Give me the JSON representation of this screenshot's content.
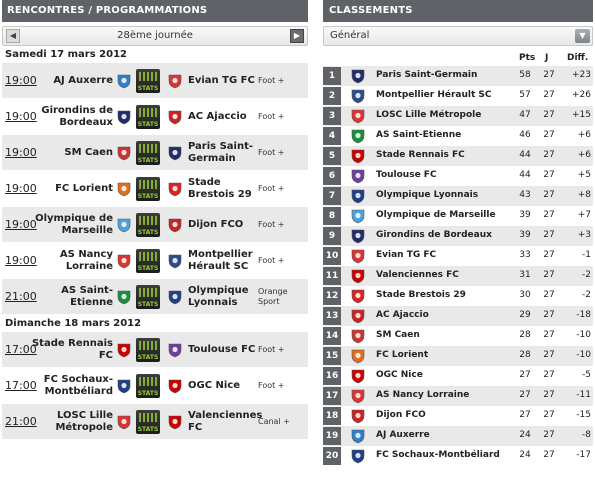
{
  "left": {
    "title": "RENCONTRES / PROGRAMMATIONS",
    "round": "28ème journée",
    "prev_icon": "chevron-left-icon",
    "next_icon": "chevron-right-icon",
    "stats_label": "STATS",
    "days": [
      {
        "date": "Samedi 17 mars 2012",
        "matches": [
          {
            "time": "19:00",
            "home": "AJ Auxerre",
            "away": "Evian TG FC",
            "channel": "Foot +",
            "home_color": "#2f7fd0",
            "away_color": "#d33"
          },
          {
            "time": "19:00",
            "home": "Girondins de Bordeaux",
            "away": "AC Ajaccio",
            "channel": "Foot +",
            "home_color": "#1e2d6b",
            "away_color": "#c22"
          },
          {
            "time": "19:00",
            "home": "SM Caen",
            "away": "Paris Saint-Germain",
            "channel": "Foot +",
            "home_color": "#c33",
            "away_color": "#1e2d6b"
          },
          {
            "time": "19:00",
            "home": "FC Lorient",
            "away": "Stade Brestois 29",
            "channel": "Foot +",
            "home_color": "#e07020",
            "away_color": "#d22"
          },
          {
            "time": "19:00",
            "home": "Olympique de Marseille",
            "away": "Dijon FCO",
            "channel": "Foot +",
            "home_color": "#4aa3df",
            "away_color": "#c22"
          },
          {
            "time": "19:00",
            "home": "AS Nancy Lorraine",
            "away": "Montpellier Hérault SC",
            "channel": "Foot +",
            "home_color": "#d33",
            "away_color": "#2a4e8c"
          },
          {
            "time": "21:00",
            "home": "AS Saint-Etienne",
            "away": "Olympique Lyonnais",
            "channel": "Orange Sport",
            "home_color": "#1a8f3c",
            "away_color": "#1e3f8a"
          }
        ]
      },
      {
        "date": "Dimanche 18 mars 2012",
        "matches": [
          {
            "time": "17:00",
            "home": "Stade Rennais FC",
            "away": "Toulouse FC",
            "channel": "Foot +",
            "home_color": "#c00",
            "away_color": "#6b3fa0"
          },
          {
            "time": "17:00",
            "home": "FC Sochaux-Montbéliard",
            "away": "OGC Nice",
            "channel": "Foot +",
            "home_color": "#1e3f8a",
            "away_color": "#c00"
          },
          {
            "time": "21:00",
            "home": "LOSC Lille Métropole",
            "away": "Valenciennes FC",
            "channel": "Canal +",
            "home_color": "#d33",
            "away_color": "#c00"
          }
        ]
      }
    ]
  },
  "right": {
    "title": "CLASSEMENTS",
    "selector": "Général",
    "dropdown_icon": "chevron-down-icon",
    "columns": {
      "pts": "Pts",
      "j": "J",
      "diff": "Diff."
    },
    "rows": [
      {
        "pos": "1",
        "club": "Paris Saint-Germain",
        "pts": "58",
        "j": "27",
        "diff": "+23",
        "color": "#1e2d6b"
      },
      {
        "pos": "2",
        "club": "Montpellier Hérault SC",
        "pts": "57",
        "j": "27",
        "diff": "+26",
        "color": "#2a4e8c"
      },
      {
        "pos": "3",
        "club": "LOSC Lille Métropole",
        "pts": "47",
        "j": "27",
        "diff": "+15",
        "color": "#d33"
      },
      {
        "pos": "4",
        "club": "AS Saint-Etienne",
        "pts": "46",
        "j": "27",
        "diff": "+6",
        "color": "#1a8f3c"
      },
      {
        "pos": "5",
        "club": "Stade Rennais FC",
        "pts": "44",
        "j": "27",
        "diff": "+6",
        "color": "#c00"
      },
      {
        "pos": "6",
        "club": "Toulouse FC",
        "pts": "44",
        "j": "27",
        "diff": "+5",
        "color": "#6b3fa0"
      },
      {
        "pos": "7",
        "club": "Olympique Lyonnais",
        "pts": "43",
        "j": "27",
        "diff": "+8",
        "color": "#1e3f8a"
      },
      {
        "pos": "8",
        "club": "Olympique de Marseille",
        "pts": "39",
        "j": "27",
        "diff": "+7",
        "color": "#4aa3df"
      },
      {
        "pos": "9",
        "club": "Girondins de Bordeaux",
        "pts": "39",
        "j": "27",
        "diff": "+3",
        "color": "#1e2d6b"
      },
      {
        "pos": "10",
        "club": "Evian TG FC",
        "pts": "33",
        "j": "27",
        "diff": "-1",
        "color": "#d33"
      },
      {
        "pos": "11",
        "club": "Valenciennes FC",
        "pts": "31",
        "j": "27",
        "diff": "-2",
        "color": "#c00"
      },
      {
        "pos": "12",
        "club": "Stade Brestois 29",
        "pts": "30",
        "j": "27",
        "diff": "-2",
        "color": "#d22"
      },
      {
        "pos": "13",
        "club": "AC Ajaccio",
        "pts": "29",
        "j": "27",
        "diff": "-18",
        "color": "#c22"
      },
      {
        "pos": "14",
        "club": "SM Caen",
        "pts": "28",
        "j": "27",
        "diff": "-10",
        "color": "#c33"
      },
      {
        "pos": "15",
        "club": "FC Lorient",
        "pts": "28",
        "j": "27",
        "diff": "-10",
        "color": "#e07020"
      },
      {
        "pos": "16",
        "club": "OGC Nice",
        "pts": "27",
        "j": "27",
        "diff": "-5",
        "color": "#c00"
      },
      {
        "pos": "17",
        "club": "AS Nancy Lorraine",
        "pts": "27",
        "j": "27",
        "diff": "-11",
        "color": "#d33"
      },
      {
        "pos": "18",
        "club": "Dijon FCO",
        "pts": "27",
        "j": "27",
        "diff": "-15",
        "color": "#c22"
      },
      {
        "pos": "19",
        "club": "AJ Auxerre",
        "pts": "24",
        "j": "27",
        "diff": "-8",
        "color": "#2f7fd0"
      },
      {
        "pos": "20",
        "club": "FC Sochaux-Montbéliard",
        "pts": "24",
        "j": "27",
        "diff": "-17",
        "color": "#1e3f8a"
      }
    ]
  }
}
